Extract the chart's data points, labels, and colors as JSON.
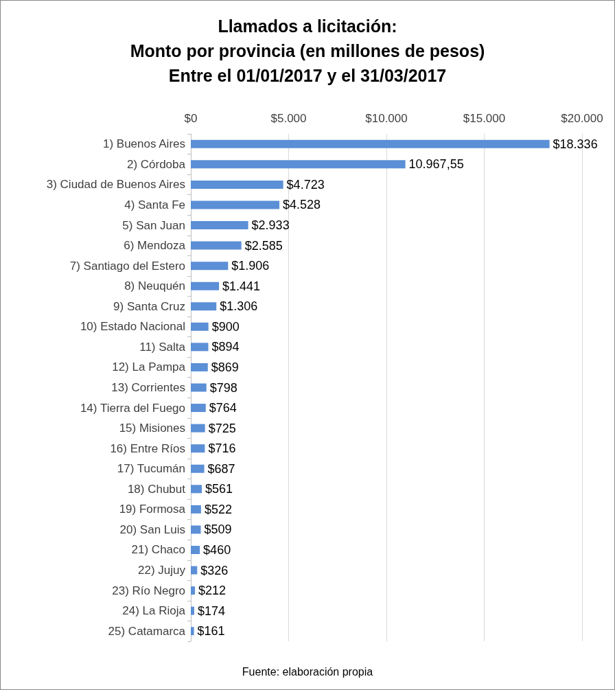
{
  "chart_data": {
    "type": "bar",
    "orientation": "horizontal",
    "title": "Llamados a licitación:\nMonto por provincia (en millones de pesos)\nEntre el 01/01/2017 y el 31/03/2017",
    "categories": [
      "1) Buenos Aires",
      "2) Córdoba",
      "3) Ciudad de Buenos Aires",
      "4) Santa Fe",
      "5) San Juan",
      "6) Mendoza",
      "7) Santiago del Estero",
      "8) Neuquén",
      "9) Santa Cruz",
      "10) Estado Nacional",
      "11) Salta",
      "12) La Pampa",
      "13) Corrientes",
      "14) Tierra del Fuego",
      "15) Misiones",
      "16) Entre Ríos",
      "17) Tucumán",
      "18) Chubut",
      "19) Formosa",
      "20) San Luis",
      "21) Chaco",
      "22) Jujuy",
      "23) Río Negro",
      "24) La Rioja",
      "25) Catamarca"
    ],
    "values": [
      18336,
      10967.55,
      4723,
      4528,
      2933,
      2585,
      1906,
      1441,
      1306,
      900,
      894,
      869,
      798,
      764,
      725,
      716,
      687,
      561,
      522,
      509,
      460,
      326,
      212,
      174,
      161
    ],
    "value_labels": [
      "$18.336",
      "10.967,55",
      "$4.723",
      "$4.528",
      "$2.933",
      "$2.585",
      "$1.906",
      "$1.441",
      "$1.306",
      "$900",
      "$894",
      "$869",
      "$798",
      "$764",
      "$725",
      "$716",
      "$687",
      "$561",
      "$522",
      "$509",
      "$460",
      "$326",
      "$212",
      "$174",
      "$161"
    ],
    "color": "#5b8fd6",
    "xlim": [
      0,
      20000
    ],
    "xticks": [
      {
        "value": 0,
        "label": "$0"
      },
      {
        "value": 5000,
        "label": "$5.000"
      },
      {
        "value": 10000,
        "label": "$10.000"
      },
      {
        "value": 15000,
        "label": "$15.000"
      },
      {
        "value": 20000,
        "label": "$20.000"
      }
    ],
    "grid": "x",
    "annotations": [
      "Fuente: elaboración propia"
    ]
  }
}
